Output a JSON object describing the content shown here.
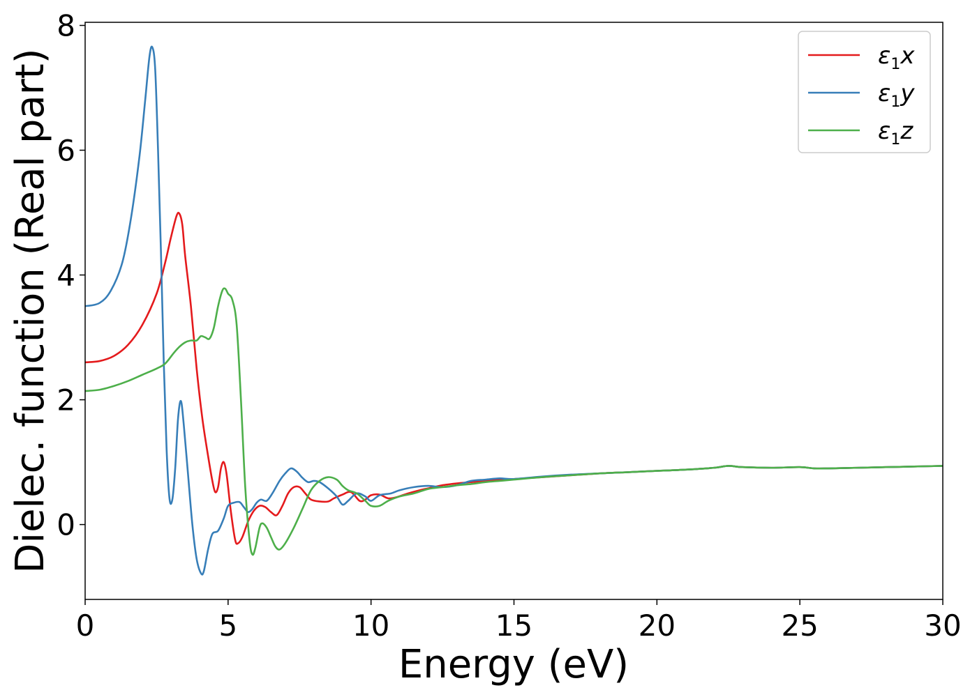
{
  "chart_data": {
    "type": "line",
    "title": "",
    "xlabel": "Energy (eV)",
    "ylabel": "Dielec. function (Real part)",
    "xlim": [
      0,
      30
    ],
    "ylim": [
      -1.2,
      8.05
    ],
    "xticks": [
      0,
      5,
      10,
      15,
      20,
      25,
      30
    ],
    "yticks": [
      0,
      2,
      4,
      6,
      8
    ],
    "grid": false,
    "legend_position": "top-right",
    "series": [
      {
        "name": "ε1x",
        "legend_symbol": "ε",
        "legend_sub": "1",
        "legend_var": "x",
        "color": "#e41a1c",
        "points": [
          [
            0,
            2.6
          ],
          [
            0.5,
            2.62
          ],
          [
            1,
            2.7
          ],
          [
            1.5,
            2.88
          ],
          [
            2,
            3.2
          ],
          [
            2.5,
            3.7
          ],
          [
            2.8,
            4.2
          ],
          [
            3.0,
            4.6
          ],
          [
            3.2,
            4.95
          ],
          [
            3.3,
            4.98
          ],
          [
            3.4,
            4.8
          ],
          [
            3.5,
            4.3
          ],
          [
            3.7,
            3.5
          ],
          [
            3.9,
            2.5
          ],
          [
            4.1,
            1.7
          ],
          [
            4.3,
            1.1
          ],
          [
            4.45,
            0.7
          ],
          [
            4.55,
            0.52
          ],
          [
            4.65,
            0.6
          ],
          [
            4.75,
            0.9
          ],
          [
            4.85,
            1.0
          ],
          [
            4.95,
            0.8
          ],
          [
            5.1,
            0.2
          ],
          [
            5.25,
            -0.25
          ],
          [
            5.35,
            -0.3
          ],
          [
            5.5,
            -0.2
          ],
          [
            5.7,
            0.05
          ],
          [
            5.9,
            0.22
          ],
          [
            6.1,
            0.3
          ],
          [
            6.3,
            0.28
          ],
          [
            6.5,
            0.2
          ],
          [
            6.7,
            0.15
          ],
          [
            6.9,
            0.3
          ],
          [
            7.1,
            0.5
          ],
          [
            7.3,
            0.6
          ],
          [
            7.5,
            0.6
          ],
          [
            7.7,
            0.5
          ],
          [
            7.9,
            0.4
          ],
          [
            8.2,
            0.37
          ],
          [
            8.5,
            0.37
          ],
          [
            8.7,
            0.42
          ],
          [
            9.0,
            0.48
          ],
          [
            9.3,
            0.52
          ],
          [
            9.6,
            0.38
          ],
          [
            9.8,
            0.4
          ],
          [
            10,
            0.47
          ],
          [
            10.3,
            0.48
          ],
          [
            10.6,
            0.42
          ],
          [
            10.9,
            0.44
          ],
          [
            11.3,
            0.5
          ],
          [
            11.7,
            0.55
          ],
          [
            12.0,
            0.58
          ],
          [
            12.5,
            0.63
          ],
          [
            13,
            0.66
          ],
          [
            13.5,
            0.68
          ],
          [
            14,
            0.7
          ],
          [
            14.5,
            0.72
          ],
          [
            15,
            0.73
          ],
          [
            16,
            0.76
          ],
          [
            17,
            0.79
          ],
          [
            18,
            0.82
          ],
          [
            19,
            0.84
          ],
          [
            20,
            0.86
          ],
          [
            21,
            0.88
          ],
          [
            22,
            0.91
          ],
          [
            22.5,
            0.94
          ],
          [
            23,
            0.92
          ],
          [
            24,
            0.91
          ],
          [
            25,
            0.92
          ],
          [
            25.5,
            0.9
          ],
          [
            26,
            0.9
          ],
          [
            27,
            0.91
          ],
          [
            28,
            0.92
          ],
          [
            29,
            0.93
          ],
          [
            30,
            0.94
          ]
        ]
      },
      {
        "name": "ε1y",
        "legend_symbol": "ε",
        "legend_sub": "1",
        "legend_var": "y",
        "color": "#377eb8",
        "points": [
          [
            0,
            3.5
          ],
          [
            0.5,
            3.55
          ],
          [
            0.9,
            3.75
          ],
          [
            1.3,
            4.2
          ],
          [
            1.6,
            4.9
          ],
          [
            1.9,
            5.9
          ],
          [
            2.1,
            6.8
          ],
          [
            2.25,
            7.5
          ],
          [
            2.35,
            7.65
          ],
          [
            2.45,
            7.3
          ],
          [
            2.55,
            6.0
          ],
          [
            2.65,
            4.4
          ],
          [
            2.75,
            2.6
          ],
          [
            2.85,
            1.2
          ],
          [
            2.95,
            0.42
          ],
          [
            3.05,
            0.4
          ],
          [
            3.15,
            0.9
          ],
          [
            3.25,
            1.7
          ],
          [
            3.35,
            1.98
          ],
          [
            3.45,
            1.6
          ],
          [
            3.6,
            0.8
          ],
          [
            3.75,
            0.0
          ],
          [
            3.9,
            -0.55
          ],
          [
            4.05,
            -0.78
          ],
          [
            4.15,
            -0.75
          ],
          [
            4.3,
            -0.4
          ],
          [
            4.45,
            -0.15
          ],
          [
            4.65,
            -0.1
          ],
          [
            4.85,
            0.1
          ],
          [
            5.0,
            0.3
          ],
          [
            5.2,
            0.35
          ],
          [
            5.4,
            0.36
          ],
          [
            5.55,
            0.28
          ],
          [
            5.7,
            0.2
          ],
          [
            5.85,
            0.25
          ],
          [
            6.0,
            0.35
          ],
          [
            6.15,
            0.4
          ],
          [
            6.35,
            0.38
          ],
          [
            6.55,
            0.5
          ],
          [
            6.8,
            0.7
          ],
          [
            7.0,
            0.82
          ],
          [
            7.2,
            0.9
          ],
          [
            7.4,
            0.85
          ],
          [
            7.6,
            0.75
          ],
          [
            7.8,
            0.68
          ],
          [
            8.0,
            0.7
          ],
          [
            8.2,
            0.68
          ],
          [
            8.5,
            0.58
          ],
          [
            8.8,
            0.45
          ],
          [
            9.0,
            0.32
          ],
          [
            9.2,
            0.38
          ],
          [
            9.5,
            0.5
          ],
          [
            9.8,
            0.45
          ],
          [
            10.0,
            0.38
          ],
          [
            10.3,
            0.47
          ],
          [
            10.7,
            0.5
          ],
          [
            11.0,
            0.55
          ],
          [
            11.5,
            0.6
          ],
          [
            12.0,
            0.62
          ],
          [
            12.5,
            0.6
          ],
          [
            13.0,
            0.63
          ],
          [
            13.5,
            0.7
          ],
          [
            14,
            0.72
          ],
          [
            14.5,
            0.74
          ],
          [
            15,
            0.73
          ],
          [
            16,
            0.77
          ],
          [
            17,
            0.8
          ],
          [
            18,
            0.82
          ],
          [
            19,
            0.84
          ],
          [
            20,
            0.86
          ],
          [
            21,
            0.88
          ],
          [
            22,
            0.91
          ],
          [
            22.5,
            0.94
          ],
          [
            23,
            0.92
          ],
          [
            24,
            0.91
          ],
          [
            25,
            0.92
          ],
          [
            25.5,
            0.9
          ],
          [
            26,
            0.9
          ],
          [
            27,
            0.91
          ],
          [
            28,
            0.92
          ],
          [
            29,
            0.93
          ],
          [
            30,
            0.94
          ]
        ]
      },
      {
        "name": "ε1z",
        "legend_symbol": "ε",
        "legend_sub": "1",
        "legend_var": "z",
        "color": "#4daf4a",
        "points": [
          [
            0,
            2.14
          ],
          [
            0.5,
            2.16
          ],
          [
            1,
            2.22
          ],
          [
            1.5,
            2.3
          ],
          [
            2,
            2.4
          ],
          [
            2.5,
            2.5
          ],
          [
            2.8,
            2.58
          ],
          [
            3.1,
            2.75
          ],
          [
            3.3,
            2.85
          ],
          [
            3.5,
            2.92
          ],
          [
            3.7,
            2.95
          ],
          [
            3.9,
            2.95
          ],
          [
            4.05,
            3.02
          ],
          [
            4.2,
            3.0
          ],
          [
            4.35,
            2.98
          ],
          [
            4.5,
            3.15
          ],
          [
            4.65,
            3.5
          ],
          [
            4.8,
            3.75
          ],
          [
            4.9,
            3.78
          ],
          [
            5.0,
            3.7
          ],
          [
            5.15,
            3.6
          ],
          [
            5.3,
            3.2
          ],
          [
            5.45,
            2.0
          ],
          [
            5.6,
            0.6
          ],
          [
            5.75,
            -0.25
          ],
          [
            5.85,
            -0.48
          ],
          [
            5.95,
            -0.38
          ],
          [
            6.1,
            -0.05
          ],
          [
            6.2,
            0.02
          ],
          [
            6.35,
            -0.05
          ],
          [
            6.5,
            -0.2
          ],
          [
            6.65,
            -0.35
          ],
          [
            6.8,
            -0.4
          ],
          [
            7.0,
            -0.3
          ],
          [
            7.3,
            -0.05
          ],
          [
            7.6,
            0.25
          ],
          [
            7.9,
            0.55
          ],
          [
            8.2,
            0.7
          ],
          [
            8.5,
            0.76
          ],
          [
            8.8,
            0.72
          ],
          [
            9.0,
            0.62
          ],
          [
            9.2,
            0.55
          ],
          [
            9.5,
            0.5
          ],
          [
            9.8,
            0.38
          ],
          [
            10.0,
            0.3
          ],
          [
            10.3,
            0.3
          ],
          [
            10.6,
            0.38
          ],
          [
            11.0,
            0.45
          ],
          [
            11.5,
            0.5
          ],
          [
            12.0,
            0.57
          ],
          [
            12.5,
            0.6
          ],
          [
            13,
            0.63
          ],
          [
            13.5,
            0.65
          ],
          [
            14,
            0.68
          ],
          [
            14.5,
            0.7
          ],
          [
            15,
            0.72
          ],
          [
            16,
            0.76
          ],
          [
            17,
            0.79
          ],
          [
            18,
            0.82
          ],
          [
            19,
            0.84
          ],
          [
            20,
            0.86
          ],
          [
            21,
            0.88
          ],
          [
            22,
            0.91
          ],
          [
            22.5,
            0.94
          ],
          [
            23,
            0.92
          ],
          [
            24,
            0.91
          ],
          [
            25,
            0.92
          ],
          [
            25.5,
            0.9
          ],
          [
            26,
            0.9
          ],
          [
            27,
            0.91
          ],
          [
            28,
            0.92
          ],
          [
            29,
            0.93
          ],
          [
            30,
            0.94
          ]
        ]
      }
    ]
  }
}
